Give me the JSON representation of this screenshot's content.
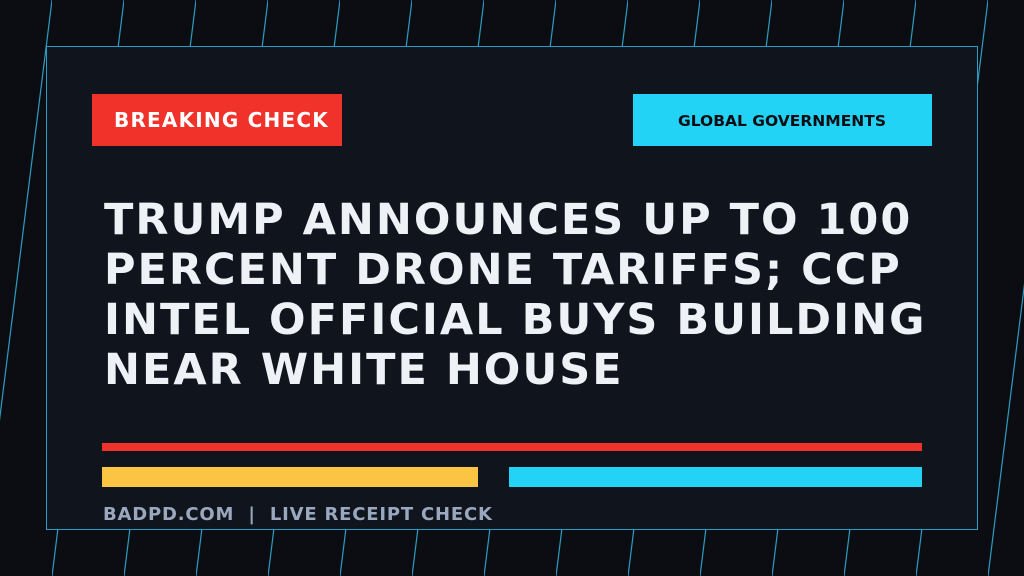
{
  "badge": "BREAKING CHECK",
  "category": "GLOBAL GOVERNMENTS",
  "headline": [
    "TRUMP ANNOUNCES UP TO 100",
    "PERCENT DRONE TARIFFS; CCP",
    "INTEL OFFICIAL BUYS BUILDING",
    "NEAR WHITE HOUSE"
  ],
  "footer": "BADPD.COM  |  LIVE RECEIPT CHECK"
}
